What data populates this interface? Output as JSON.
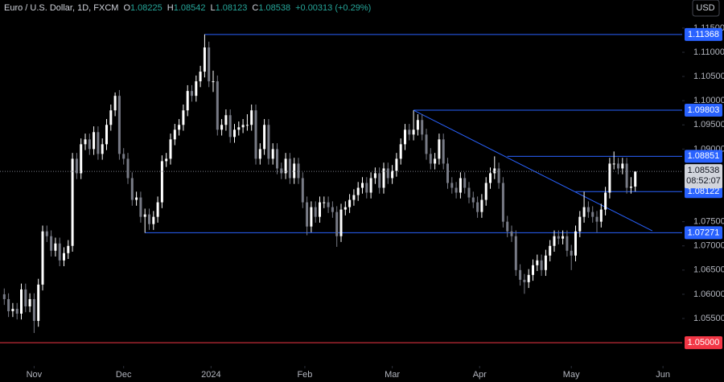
{
  "chart_data": {
    "type": "candlestick",
    "header": {
      "symbol": "Euro / U.S. Dollar, 1D, FXCM",
      "ohlc": [
        {
          "key": "O",
          "value": "1.08225"
        },
        {
          "key": "H",
          "value": "1.08542"
        },
        {
          "key": "L",
          "value": "1.08123"
        },
        {
          "key": "C",
          "value": "1.08538"
        }
      ],
      "change": "+0.00313 (+0.29%)"
    },
    "currency": "USD",
    "up_color": "#ffffff",
    "down_color": "#787b86",
    "xlim": [
      -1,
      159
    ],
    "ylim": [
      1.0452,
      1.1208
    ],
    "xticks": [
      {
        "value": 7,
        "label": "Nov"
      },
      {
        "value": 28,
        "label": "Dec"
      },
      {
        "value": 48.5,
        "label": "2024"
      },
      {
        "value": 70.5,
        "label": "Feb"
      },
      {
        "value": 91,
        "label": "Mar"
      },
      {
        "value": 111.5,
        "label": "Apr"
      },
      {
        "value": 133,
        "label": "May"
      },
      {
        "value": 154.5,
        "label": "Jun"
      }
    ],
    "yticks": [
      {
        "value": 1.115,
        "label": "1.11500"
      },
      {
        "value": 1.11,
        "label": "1.11000"
      },
      {
        "value": 1.105,
        "label": "1.10500"
      },
      {
        "value": 1.1,
        "label": "1.10000"
      },
      {
        "value": 1.095,
        "label": "1.09500"
      },
      {
        "value": 1.09,
        "label": "1.09000"
      },
      {
        "value": 1.075,
        "label": "1.07500"
      },
      {
        "value": 1.07,
        "label": "1.07000"
      },
      {
        "value": 1.065,
        "label": "1.06500"
      },
      {
        "value": 1.06,
        "label": "1.06000"
      },
      {
        "value": 1.055,
        "label": "1.05500"
      }
    ],
    "levels": [
      {
        "value": 1.11368,
        "from": 47
      },
      {
        "value": 1.09803,
        "from": 96
      },
      {
        "value": 1.08851,
        "from": 118
      },
      {
        "value": 1.08122,
        "from": 134
      },
      {
        "value": 1.07271,
        "from": 33
      }
    ],
    "support": {
      "value": 1.05,
      "label": "1.05000",
      "color": "#f23645"
    },
    "level_color": "#2962ff",
    "trendline": {
      "from": [
        96,
        1.09803
      ],
      "to": [
        152,
        1.0731
      ]
    },
    "last_price": {
      "value": 1.08538,
      "countdown": "08:52:07"
    },
    "candles": [
      [
        1.06,
        1.0612,
        1.0578,
        1.059
      ],
      [
        1.059,
        1.0602,
        1.0553,
        1.0565
      ],
      [
        1.0565,
        1.0582,
        1.0553,
        1.057
      ],
      [
        1.057,
        1.0582,
        1.0548,
        1.056
      ],
      [
        1.056,
        1.0622,
        1.0548,
        1.061
      ],
      [
        1.061,
        1.0622,
        1.0563,
        1.0575
      ],
      [
        1.0575,
        1.0602,
        1.0563,
        1.059
      ],
      [
        1.059,
        1.0602,
        1.052,
        1.0545
      ],
      [
        1.0545,
        1.0632,
        1.0533,
        1.062
      ],
      [
        1.062,
        1.0742,
        1.0608,
        1.073
      ],
      [
        1.073,
        1.0742,
        1.0708,
        1.072
      ],
      [
        1.072,
        1.0732,
        1.0678,
        1.069
      ],
      [
        1.069,
        1.0717,
        1.0678,
        1.0705
      ],
      [
        1.0705,
        1.0717,
        1.0658,
        1.067
      ],
      [
        1.067,
        1.0697,
        1.0658,
        1.0685
      ],
      [
        1.0685,
        1.0712,
        1.0673,
        1.07
      ],
      [
        1.07,
        1.0892,
        1.0688,
        1.088
      ],
      [
        1.088,
        1.0892,
        1.0838,
        1.085
      ],
      [
        1.085,
        1.0922,
        1.0838,
        1.091
      ],
      [
        1.091,
        1.0932,
        1.0898,
        1.092
      ],
      [
        1.092,
        1.0932,
        1.0888,
        1.09
      ],
      [
        1.09,
        1.0947,
        1.0888,
        1.0935
      ],
      [
        1.0935,
        1.0947,
        1.0878,
        1.089
      ],
      [
        1.089,
        1.0922,
        1.0878,
        1.091
      ],
      [
        1.091,
        1.0962,
        1.0898,
        1.095
      ],
      [
        1.095,
        1.0992,
        1.0938,
        1.098
      ],
      [
        1.098,
        1.1017,
        1.0968,
        1.101
      ],
      [
        1.101,
        1.1022,
        1.0878,
        1.089
      ],
      [
        1.089,
        1.0902,
        1.0868,
        1.088
      ],
      [
        1.088,
        1.0892,
        1.0828,
        1.084
      ],
      [
        1.084,
        1.0852,
        1.0783,
        1.0795
      ],
      [
        1.0795,
        1.0812,
        1.0783,
        1.08
      ],
      [
        1.08,
        1.0812,
        1.0748,
        1.076
      ],
      [
        1.076,
        1.0777,
        1.0727,
        1.0765
      ],
      [
        1.0765,
        1.0777,
        1.0733,
        1.0745
      ],
      [
        1.0745,
        1.0772,
        1.0733,
        1.076
      ],
      [
        1.076,
        1.0802,
        1.0748,
        1.079
      ],
      [
        1.079,
        1.0887,
        1.0778,
        1.0875
      ],
      [
        1.0875,
        1.0892,
        1.0863,
        1.088
      ],
      [
        1.088,
        1.0932,
        1.0868,
        1.092
      ],
      [
        1.092,
        1.0952,
        1.0908,
        1.094
      ],
      [
        1.094,
        1.0962,
        1.0928,
        1.095
      ],
      [
        1.095,
        1.0992,
        1.0938,
        1.098
      ],
      [
        1.098,
        1.1032,
        1.0968,
        1.102
      ],
      [
        1.102,
        1.1032,
        1.0998,
        1.101
      ],
      [
        1.101,
        1.1052,
        1.0998,
        1.104
      ],
      [
        1.104,
        1.1072,
        1.1028,
        1.106
      ],
      [
        1.106,
        1.1137,
        1.1048,
        1.111
      ],
      [
        1.111,
        1.1122,
        1.1028,
        1.104
      ],
      [
        1.104,
        1.1062,
        1.1018,
        1.104
      ],
      [
        1.104,
        1.1052,
        1.0928,
        1.094
      ],
      [
        1.094,
        1.0962,
        1.0928,
        1.095
      ],
      [
        1.095,
        1.0982,
        1.0938,
        1.097
      ],
      [
        1.097,
        1.0982,
        1.0913,
        1.0925
      ],
      [
        1.0925,
        1.0952,
        1.0913,
        1.094
      ],
      [
        1.094,
        1.0957,
        1.0928,
        1.0945
      ],
      [
        1.0945,
        1.0962,
        1.0933,
        1.095
      ],
      [
        1.095,
        1.0972,
        1.0938,
        1.095
      ],
      [
        1.095,
        1.0992,
        1.0938,
        1.098
      ],
      [
        1.098,
        1.0992,
        1.0868,
        1.088
      ],
      [
        1.088,
        1.0912,
        1.0868,
        1.09
      ],
      [
        1.09,
        1.0962,
        1.0888,
        1.095
      ],
      [
        1.095,
        1.0962,
        1.0868,
        1.088
      ],
      [
        1.088,
        1.0912,
        1.0868,
        1.09
      ],
      [
        1.09,
        1.0912,
        1.0848,
        1.086
      ],
      [
        1.086,
        1.0872,
        1.0838,
        1.085
      ],
      [
        1.085,
        1.0892,
        1.0838,
        1.088
      ],
      [
        1.088,
        1.0892,
        1.0828,
        1.084
      ],
      [
        1.084,
        1.0882,
        1.0828,
        1.087
      ],
      [
        1.087,
        1.0882,
        1.0828,
        1.084
      ],
      [
        1.084,
        1.0852,
        1.0778,
        1.079
      ],
      [
        1.079,
        1.0802,
        1.0722,
        1.074
      ],
      [
        1.074,
        1.0792,
        1.0728,
        1.078
      ],
      [
        1.078,
        1.0792,
        1.0748,
        1.076
      ],
      [
        1.076,
        1.0802,
        1.0748,
        1.079
      ],
      [
        1.079,
        1.0802,
        1.0778,
        1.079
      ],
      [
        1.079,
        1.0802,
        1.0768,
        1.078
      ],
      [
        1.078,
        1.0792,
        1.0758,
        1.077
      ],
      [
        1.077,
        1.0782,
        1.0698,
        1.072
      ],
      [
        1.072,
        1.0787,
        1.0708,
        1.0775
      ],
      [
        1.0775,
        1.0792,
        1.0763,
        1.078
      ],
      [
        1.078,
        1.0807,
        1.0768,
        1.0795
      ],
      [
        1.0795,
        1.0817,
        1.0783,
        1.0805
      ],
      [
        1.0805,
        1.0832,
        1.0793,
        1.082
      ],
      [
        1.082,
        1.0842,
        1.0808,
        1.083
      ],
      [
        1.083,
        1.0842,
        1.0798,
        1.081
      ],
      [
        1.081,
        1.0852,
        1.0798,
        1.084
      ],
      [
        1.084,
        1.0862,
        1.0828,
        1.085
      ],
      [
        1.085,
        1.0862,
        1.0808,
        1.082
      ],
      [
        1.082,
        1.0872,
        1.0808,
        1.086
      ],
      [
        1.086,
        1.0872,
        1.0828,
        1.084
      ],
      [
        1.084,
        1.0867,
        1.0828,
        1.0855
      ],
      [
        1.0855,
        1.0892,
        1.0843,
        1.088
      ],
      [
        1.088,
        1.0922,
        1.0868,
        1.091
      ],
      [
        1.091,
        1.0952,
        1.0898,
        1.094
      ],
      [
        1.094,
        1.0952,
        1.0918,
        1.093
      ],
      [
        1.093,
        1.098,
        1.0918,
        1.094
      ],
      [
        1.094,
        1.0972,
        1.0928,
        1.096
      ],
      [
        1.096,
        1.0972,
        1.0918,
        1.093
      ],
      [
        1.093,
        1.0942,
        1.0878,
        1.089
      ],
      [
        1.089,
        1.0902,
        1.0858,
        1.087
      ],
      [
        1.087,
        1.0892,
        1.0858,
        1.088
      ],
      [
        1.088,
        1.0932,
        1.0868,
        1.092
      ],
      [
        1.092,
        1.0932,
        1.0858,
        1.087
      ],
      [
        1.087,
        1.0882,
        1.0818,
        1.083
      ],
      [
        1.083,
        1.0842,
        1.0808,
        1.082
      ],
      [
        1.082,
        1.0832,
        1.0798,
        1.081
      ],
      [
        1.081,
        1.0852,
        1.0798,
        1.084
      ],
      [
        1.084,
        1.0852,
        1.0808,
        1.082
      ],
      [
        1.082,
        1.0832,
        1.0788,
        1.08
      ],
      [
        1.08,
        1.0812,
        1.0778,
        1.079
      ],
      [
        1.079,
        1.0802,
        1.0758,
        1.077
      ],
      [
        1.077,
        1.0807,
        1.0758,
        1.0795
      ],
      [
        1.0795,
        1.0842,
        1.0783,
        1.083
      ],
      [
        1.083,
        1.0862,
        1.0818,
        1.085
      ],
      [
        1.085,
        1.0885,
        1.0838,
        1.086
      ],
      [
        1.086,
        1.0872,
        1.0818,
        1.083
      ],
      [
        1.083,
        1.0842,
        1.0738,
        1.075
      ],
      [
        1.075,
        1.0762,
        1.0718,
        1.073
      ],
      [
        1.073,
        1.0742,
        1.0708,
        1.072
      ],
      [
        1.072,
        1.0732,
        1.0638,
        1.065
      ],
      [
        1.065,
        1.0662,
        1.0618,
        1.063
      ],
      [
        1.063,
        1.0642,
        1.0601,
        1.0625
      ],
      [
        1.0625,
        1.0652,
        1.0613,
        1.064
      ],
      [
        1.064,
        1.0672,
        1.0628,
        1.066
      ],
      [
        1.066,
        1.0682,
        1.0648,
        1.067
      ],
      [
        1.067,
        1.0682,
        1.0638,
        1.065
      ],
      [
        1.065,
        1.0692,
        1.0638,
        1.068
      ],
      [
        1.068,
        1.0712,
        1.0668,
        1.07
      ],
      [
        1.07,
        1.0732,
        1.0688,
        1.072
      ],
      [
        1.072,
        1.0732,
        1.0703,
        1.0715
      ],
      [
        1.0715,
        1.0732,
        1.0703,
        1.072
      ],
      [
        1.072,
        1.0732,
        1.0678,
        1.069
      ],
      [
        1.069,
        1.0702,
        1.065,
        1.068
      ],
      [
        1.068,
        1.0742,
        1.0668,
        1.073
      ],
      [
        1.073,
        1.0772,
        1.0718,
        1.076
      ],
      [
        1.076,
        1.0812,
        1.0748,
        1.078
      ],
      [
        1.078,
        1.0792,
        1.0758,
        1.077
      ],
      [
        1.077,
        1.0782,
        1.0748,
        1.076
      ],
      [
        1.076,
        1.0772,
        1.0728,
        1.075
      ],
      [
        1.075,
        1.0787,
        1.0738,
        1.0775
      ],
      [
        1.0775,
        1.0822,
        1.0763,
        1.081
      ],
      [
        1.081,
        1.0882,
        1.0798,
        1.087
      ],
      [
        1.087,
        1.0895,
        1.0858,
        1.087
      ],
      [
        1.087,
        1.0882,
        1.0848,
        1.086
      ],
      [
        1.086,
        1.0882,
        1.0848,
        1.087
      ],
      [
        1.087,
        1.0882,
        1.0808,
        1.082
      ],
      [
        1.082,
        1.0842,
        1.0808,
        1.08225
      ],
      [
        1.08225,
        1.08542,
        1.08123,
        1.08538
      ]
    ]
  }
}
